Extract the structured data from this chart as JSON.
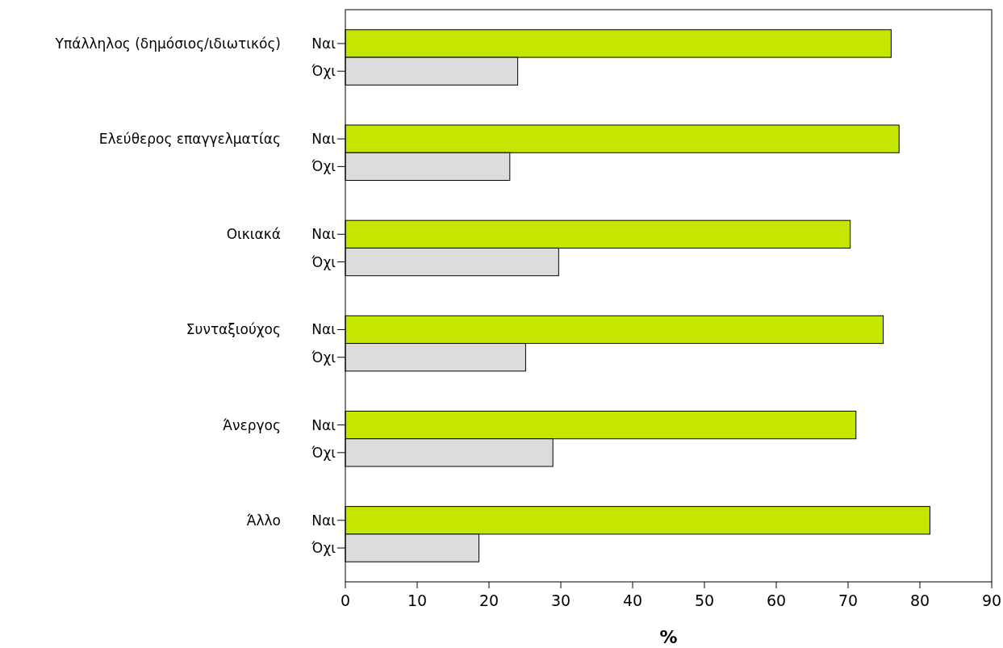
{
  "chart_data": {
    "type": "bar",
    "orientation": "horizontal",
    "xlabel": "%",
    "categories": [
      "Υπάλληλος (δημόσιος/ιδιωτικός)",
      "Ελεύθερος επαγγελματίας",
      "Οικιακά",
      "Συνταξιούχος",
      "Άνεργος",
      "Άλλο"
    ],
    "series": [
      {
        "name": "Ναι",
        "color": "#c5e600",
        "values": [
          76,
          77.1,
          70.3,
          74.9,
          71.1,
          81.4
        ]
      },
      {
        "name": "Όχι",
        "color": "#dcdcdc",
        "values": [
          24,
          22.9,
          29.7,
          25.1,
          28.9,
          18.6
        ]
      }
    ],
    "xlim": [
      0,
      90
    ],
    "xticks": [
      0,
      10,
      20,
      30,
      40,
      50,
      60,
      70,
      80,
      90
    ],
    "legend": "left",
    "grid": false
  }
}
